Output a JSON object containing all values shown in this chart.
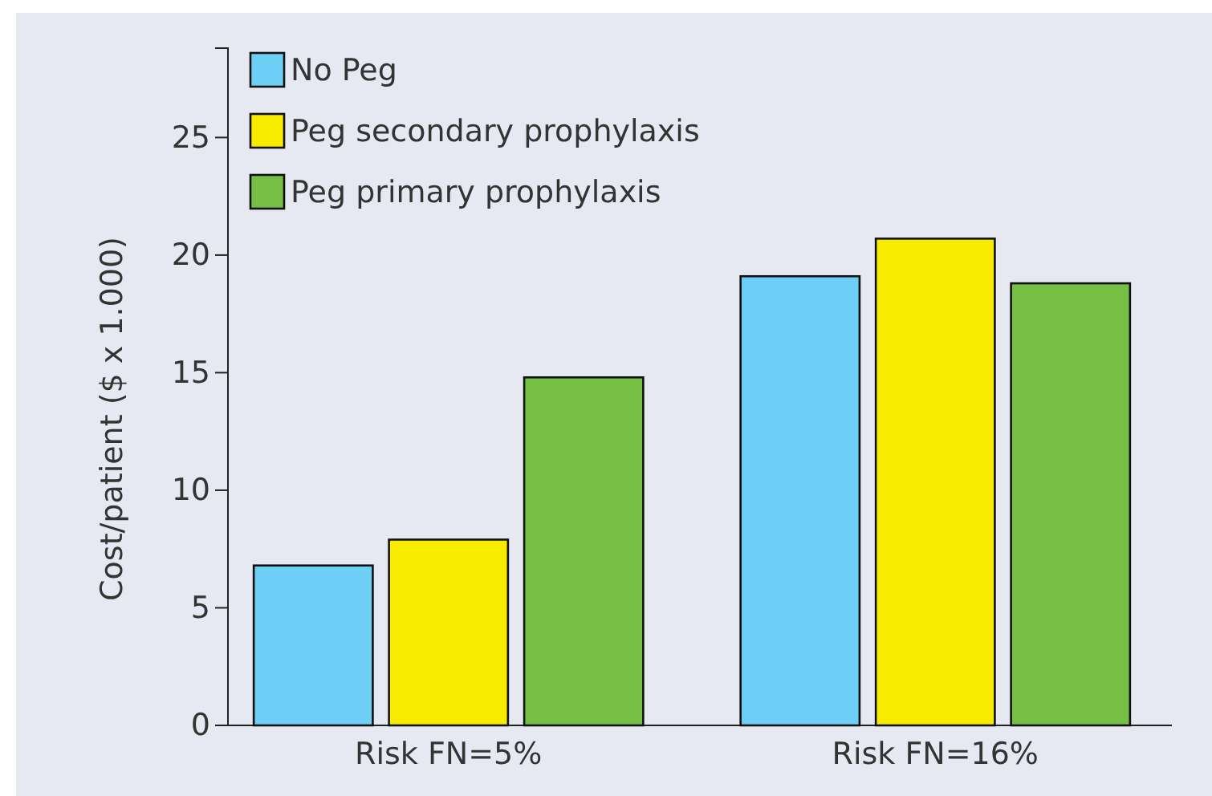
{
  "chart_data": {
    "type": "bar",
    "ylabel": "Cost/patient ($ x 1.000)",
    "categories": [
      "Risk FN=5%",
      "Risk FN=16%"
    ],
    "series": [
      {
        "name": "No Peg",
        "color": "#6dcff6",
        "values": [
          6.8,
          19.1
        ]
      },
      {
        "name": "Peg secondary prophylaxis",
        "color": "#f7ec00",
        "values": [
          7.9,
          20.7
        ]
      },
      {
        "name": "Peg primary prophylaxis",
        "color": "#74bf44",
        "values": [
          14.8,
          18.8
        ]
      }
    ],
    "ylim": [
      0,
      28.8
    ],
    "yticks": [
      0,
      5,
      10,
      15,
      20,
      25
    ],
    "legend": "top left",
    "grid": false
  }
}
